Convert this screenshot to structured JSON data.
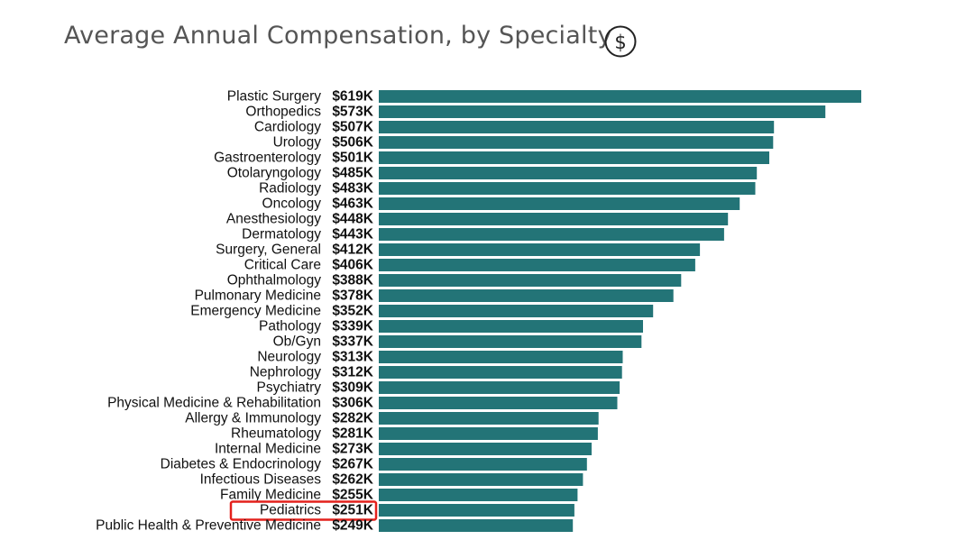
{
  "header": {
    "title": "Average Annual Compensation, by Specialty",
    "title_icon": "dollar-circle-icon"
  },
  "colors": {
    "bar": "#237477",
    "label": "#111111",
    "highlight_box": "#e3211c",
    "title": "#555555"
  },
  "chart_data": {
    "type": "bar",
    "orientation": "horizontal",
    "title": "Average Annual Compensation, by Specialty",
    "xlabel": "",
    "ylabel": "",
    "value_unit": "thousands USD",
    "grid": false,
    "legend": "none",
    "highlighted_category": "Pediatrics",
    "categories": [
      "Plastic Surgery",
      "Orthopedics",
      "Cardiology",
      "Urology",
      "Gastroenterology",
      "Otolaryngology",
      "Radiology",
      "Oncology",
      "Anesthesiology",
      "Dermatology",
      "Surgery, General",
      "Critical Care",
      "Ophthalmology",
      "Pulmonary Medicine",
      "Emergency Medicine",
      "Pathology",
      "Ob/Gyn",
      "Neurology",
      "Nephrology",
      "Psychiatry",
      "Physical Medicine & Rehabilitation",
      "Allergy & Immunology",
      "Rheumatology",
      "Internal Medicine",
      "Diabetes & Endocrinology",
      "Infectious Diseases",
      "Family Medicine",
      "Pediatrics",
      "Public Health & Preventive Medicine"
    ],
    "values": [
      619,
      573,
      507,
      506,
      501,
      485,
      483,
      463,
      448,
      443,
      412,
      406,
      388,
      378,
      352,
      339,
      337,
      313,
      312,
      309,
      306,
      282,
      281,
      273,
      267,
      262,
      255,
      251,
      249
    ],
    "value_labels": [
      "$619K",
      "$573K",
      "$507K",
      "$506K",
      "$501K",
      "$485K",
      "$483K",
      "$463K",
      "$448K",
      "$443K",
      "$412K",
      "$406K",
      "$388K",
      "$378K",
      "$352K",
      "$339K",
      "$337K",
      "$313K",
      "$312K",
      "$309K",
      "$306K",
      "$282K",
      "$281K",
      "$273K",
      "$267K",
      "$262K",
      "$255K",
      "$251K",
      "$249K"
    ]
  }
}
